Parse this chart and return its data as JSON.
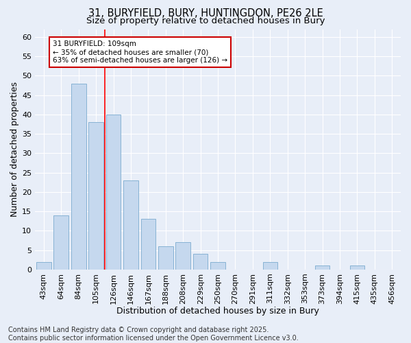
{
  "title1": "31, BURYFIELD, BURY, HUNTINGDON, PE26 2LE",
  "title2": "Size of property relative to detached houses in Bury",
  "xlabel": "Distribution of detached houses by size in Bury",
  "ylabel": "Number of detached properties",
  "bar_labels": [
    "43sqm",
    "64sqm",
    "84sqm",
    "105sqm",
    "126sqm",
    "146sqm",
    "167sqm",
    "188sqm",
    "208sqm",
    "229sqm",
    "250sqm",
    "270sqm",
    "291sqm",
    "311sqm",
    "332sqm",
    "353sqm",
    "373sqm",
    "394sqm",
    "415sqm",
    "435sqm",
    "456sqm"
  ],
  "bar_values": [
    2,
    14,
    48,
    38,
    40,
    23,
    13,
    6,
    7,
    4,
    2,
    0,
    0,
    2,
    0,
    0,
    1,
    0,
    1,
    0,
    0
  ],
  "bar_color": "#c5d8ee",
  "bar_edge_color": "#7aabcf",
  "background_color": "#e8eef8",
  "grid_color": "#ffffff",
  "ylim": [
    0,
    62
  ],
  "yticks": [
    0,
    5,
    10,
    15,
    20,
    25,
    30,
    35,
    40,
    45,
    50,
    55,
    60
  ],
  "red_line_bar_index": 3,
  "annotation_text": "31 BURYFIELD: 109sqm\n← 35% of detached houses are smaller (70)\n63% of semi-detached houses are larger (126) →",
  "annotation_box_color": "#ffffff",
  "annotation_box_edge": "#cc0000",
  "footer": "Contains HM Land Registry data © Crown copyright and database right 2025.\nContains public sector information licensed under the Open Government Licence v3.0.",
  "title1_fontsize": 10.5,
  "title2_fontsize": 9.5,
  "axis_label_fontsize": 9,
  "tick_fontsize": 8,
  "annotation_fontsize": 7.5,
  "footer_fontsize": 7
}
